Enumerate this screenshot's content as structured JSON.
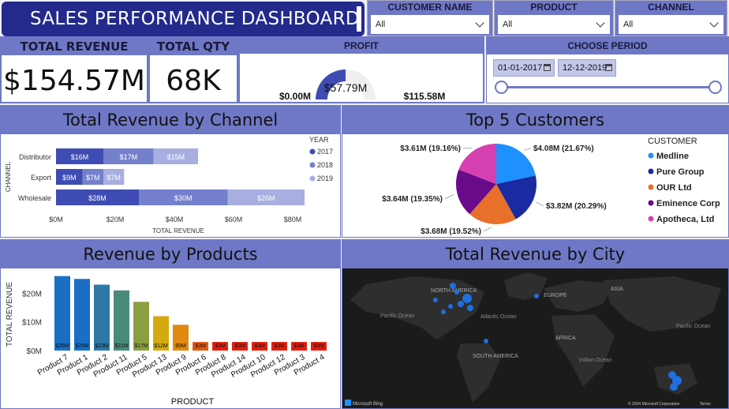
{
  "header": {
    "title": "SALES PERFORMANCE DASHBOARD"
  },
  "slicers": {
    "customer": {
      "label": "CUSTOMER NAME",
      "value": "All"
    },
    "product": {
      "label": "PRODUCT",
      "value": "All"
    },
    "channel": {
      "label": "CHANNEL",
      "value": "All"
    }
  },
  "kpis": {
    "revenue": {
      "label": "TOTAL REVENUE",
      "value": "$154.57M"
    },
    "qty": {
      "label": "TOTAL QTY",
      "value": "68K"
    },
    "profit": {
      "label": "PROFIT",
      "value": "$57.79M",
      "min": "$0.00M",
      "max": "$115.58M",
      "fraction": 0.5
    }
  },
  "period": {
    "label": "CHOOSE PERIOD",
    "start": "01-01-2017",
    "end": "12-12-2019"
  },
  "titles": {
    "channel": "Total Revenue by Channel",
    "customers": "Top 5 Customers",
    "products": "Revenue by Products",
    "city": "Total Revenue by City"
  },
  "colors": {
    "header": "#6f78c6",
    "banner": "#232a8c",
    "y2017": "#3f4cb3",
    "y2018": "#7580cc",
    "y2019": "#a8aee0"
  },
  "chart_data": [
    {
      "type": "bar",
      "orientation": "horizontal",
      "stacked": true,
      "title": "Total Revenue by Channel",
      "categories": [
        "Distributor",
        "Export",
        "Wholesale"
      ],
      "series": [
        {
          "name": "2017",
          "values": [
            16,
            9,
            28
          ],
          "labels": [
            "$16M",
            "$9M",
            "$28M"
          ]
        },
        {
          "name": "2018",
          "values": [
            17,
            7,
            30
          ],
          "labels": [
            "$17M",
            "$7M",
            "$30M"
          ]
        },
        {
          "name": "2019",
          "values": [
            15,
            7,
            26
          ],
          "labels": [
            "$15M",
            "$7M",
            "$26M"
          ]
        }
      ],
      "xlabel": "TOTAL REVENUE",
      "ylabel": "CHANNEL",
      "xticks": [
        "$0M",
        "$20M",
        "$40M",
        "$60M",
        "$80M"
      ],
      "xlim": [
        0,
        80
      ],
      "legend": {
        "title": "YEAR",
        "placement": "right"
      }
    },
    {
      "type": "pie",
      "title": "Top 5 Customers",
      "legend": {
        "title": "CUSTOMER",
        "placement": "right"
      },
      "slices": [
        {
          "name": "Medline",
          "value": 4.08,
          "label": "$4.08M (21.67%)",
          "color": "#1e90ff"
        },
        {
          "name": "Pure Group",
          "value": 3.82,
          "label": "$3.82M (20.29%)",
          "color": "#1a2aa0"
        },
        {
          "name": "OUR Ltd",
          "value": 3.68,
          "label": "$3.68M (19.52%)",
          "color": "#e8702a"
        },
        {
          "name": "Eminence Corp",
          "value": 3.64,
          "label": "$3.64M (19.35%)",
          "color": "#6a0a8a"
        },
        {
          "name": "Apotheca, Ltd",
          "value": 3.61,
          "label": "$3.61M (19.16%)",
          "color": "#d63fb0"
        }
      ]
    },
    {
      "type": "bar",
      "title": "Revenue by Products",
      "categories": [
        "Product 7",
        "Product 1",
        "Product 2",
        "Product 11",
        "Product 5",
        "Product 13",
        "Product 9",
        "Product 6",
        "Product 8",
        "Product 14",
        "Product 10",
        "Product 12",
        "Product 3",
        "Product 4"
      ],
      "values": [
        26,
        25,
        23,
        21,
        17,
        12,
        9,
        3,
        3,
        3,
        3,
        3,
        3,
        3
      ],
      "labels": [
        "$26M",
        "$25M",
        "$23M",
        "$21M",
        "$17M",
        "$12M",
        "$9M",
        "$3M",
        "$3M",
        "$3M",
        "$3M",
        "$3M",
        "$3M",
        "$3M"
      ],
      "colors": [
        "#1a6fc4",
        "#1a6fc4",
        "#2e78a8",
        "#4a8a7a",
        "#8aa040",
        "#d4aa10",
        "#e08a10",
        "#e05a10",
        "#e02010",
        "#e02010",
        "#e02010",
        "#e02010",
        "#e02010",
        "#e02010"
      ],
      "xlabel": "PRODUCT",
      "ylabel": "TOTAL REVENUE",
      "yticks": [
        "$0M",
        "$10M",
        "$20M"
      ],
      "ylim": [
        0,
        27
      ]
    }
  ],
  "map": {
    "labels": {
      "na": "NORTH AMERICA",
      "eu": "EUROPE",
      "asia": "ASIA",
      "pacific_w": "Pacific Ocean",
      "atlantic": "Atlantic Ocean",
      "sa": "SOUTH AMERICA",
      "africa": "AFRICA",
      "indian": "Indian Ocean",
      "pacific_e": "Pacific Ocean"
    },
    "credit_left": "Microsoft Bing",
    "credit_right": "© 2024 Microsoft Corporation",
    "terms": "Terms"
  }
}
